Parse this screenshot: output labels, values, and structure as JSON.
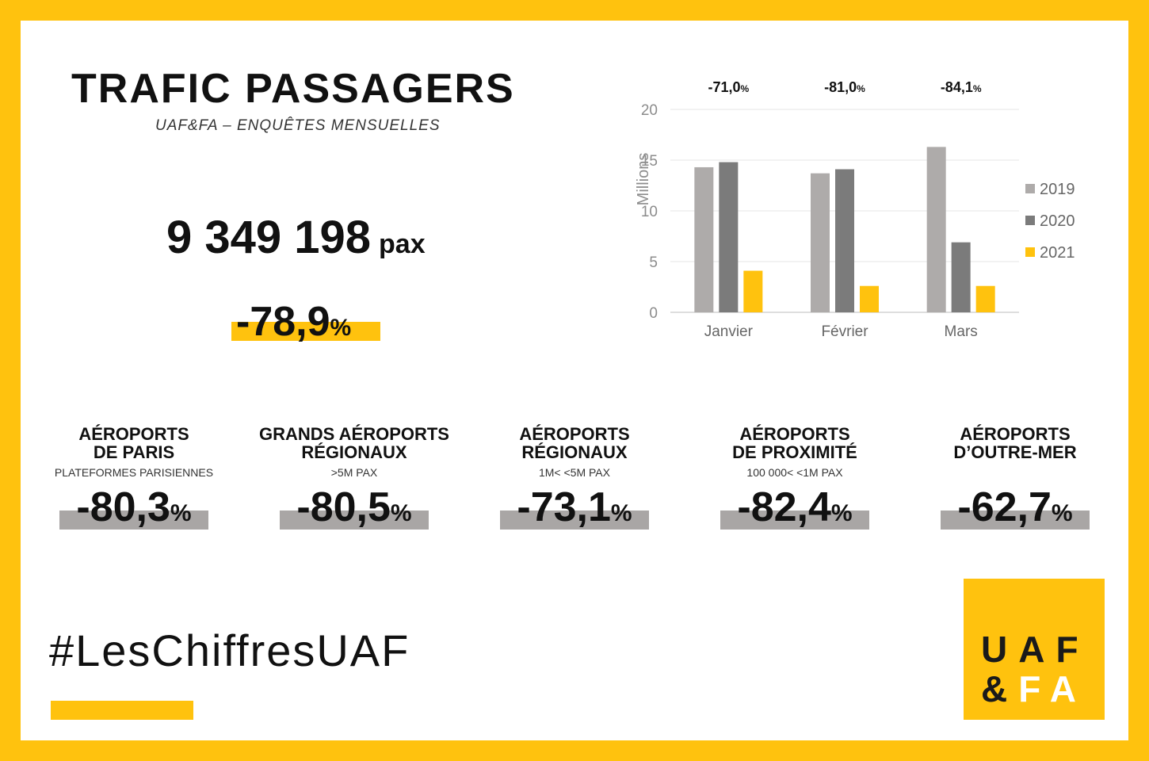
{
  "header": {
    "title": "TRAFIC PASSAGERS",
    "subtitle": "UAF&FA – ENQUÊTES MENSUELLES"
  },
  "total": {
    "value": "9 349 198",
    "unit": "pax",
    "change": "-78,9",
    "change_unit": "%"
  },
  "chart_data": {
    "type": "bar",
    "categories": [
      "Janvier",
      "Février",
      "Mars"
    ],
    "series": [
      {
        "name": "2019",
        "values": [
          14.3,
          13.7,
          16.3
        ],
        "color": "#aeabaa"
      },
      {
        "name": "2020",
        "values": [
          14.8,
          14.1,
          6.9
        ],
        "color": "#7b7b7b"
      },
      {
        "name": "2021",
        "values": [
          4.1,
          2.6,
          2.6
        ],
        "color": "#ffc20e"
      }
    ],
    "ylabel": "Millions",
    "ylim": [
      0,
      20
    ],
    "yticks": [
      "0",
      "5",
      "10",
      "15",
      "20"
    ],
    "change_labels": [
      "-71,0",
      "-81,0",
      "-84,1"
    ],
    "change_unit": "%",
    "legend_position": "right",
    "grid": true
  },
  "categories": [
    {
      "name_line1": "AÉROPORTS",
      "name_line2": "DE PARIS",
      "sub": "PLATEFORMES PARISIENNES",
      "change": "-80,3",
      "unit": "%"
    },
    {
      "name_line1": "GRANDS AÉROPORTS",
      "name_line2": "RÉGIONAUX",
      "sub": ">5M PAX",
      "change": "-80,5",
      "unit": "%"
    },
    {
      "name_line1": "AÉROPORTS",
      "name_line2": "RÉGIONAUX",
      "sub": "1M< <5M PAX",
      "change": "-73,1",
      "unit": "%"
    },
    {
      "name_line1": "AÉROPORTS",
      "name_line2": "DE PROXIMITÉ",
      "sub": "100 000< <1M PAX",
      "change": "-82,4",
      "unit": "%"
    },
    {
      "name_line1": "AÉROPORTS",
      "name_line2": "D’OUTRE-MER",
      "sub": "",
      "change": "-62,7",
      "unit": "%"
    }
  ],
  "footer": {
    "hashtag": "#LesChiffresUAF"
  },
  "logo": {
    "line1": "UAF",
    "line2_amp": "&",
    "line2_rest": "FA"
  },
  "colors": {
    "accent": "#ffc20e",
    "gray_bar": "#a9a6a5"
  }
}
